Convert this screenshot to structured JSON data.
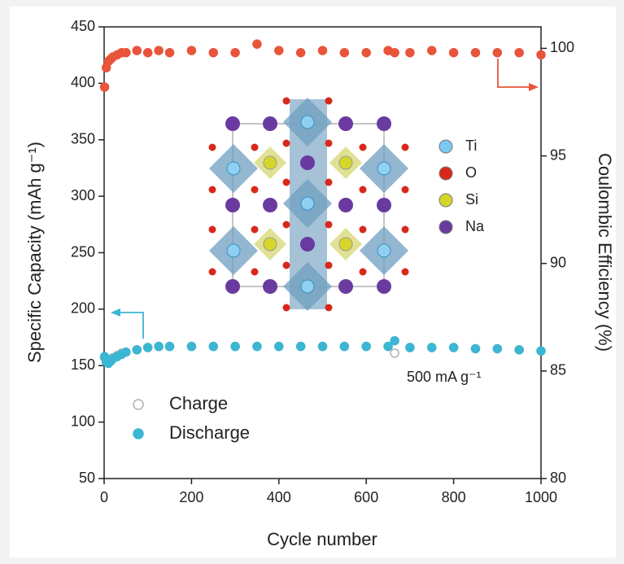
{
  "chart_data": {
    "type": "scatter",
    "x_label": "Cycle number",
    "y_label": "Specific Capacity (mAh g⁻¹)",
    "y2_label": "Coulombic Efficiency (%)",
    "annotation": "500 mA g⁻¹",
    "x": [
      1,
      5,
      10,
      15,
      20,
      30,
      40,
      50,
      75,
      100,
      125,
      150,
      200,
      250,
      300,
      350,
      400,
      450,
      500,
      550,
      600,
      650,
      665,
      700,
      750,
      800,
      850,
      900,
      950,
      1000
    ],
    "series": [
      {
        "name": "Charge",
        "color": "#b0b0b0",
        "filled": false,
        "values": [
          157,
          154,
          153,
          155,
          157,
          159,
          161,
          162,
          164,
          166,
          167,
          167,
          167,
          167,
          167,
          167,
          167,
          167,
          167,
          167,
          167,
          167,
          161,
          166,
          166,
          166,
          165,
          165,
          164,
          163
        ]
      },
      {
        "name": "Discharge",
        "color": "#3bb6d3",
        "filled": true,
        "values": [
          158,
          153,
          152,
          154,
          156,
          158,
          160,
          162,
          164,
          166,
          167,
          167,
          167,
          167,
          167,
          167,
          167,
          167,
          167,
          167,
          167,
          167,
          172,
          166,
          166,
          166,
          165,
          165,
          164,
          163
        ]
      },
      {
        "color": "#e8553a",
        "filled": true,
        "axis": "y2",
        "values": [
          98.2,
          99.1,
          99.4,
          99.5,
          99.6,
          99.7,
          99.8,
          99.8,
          99.9,
          99.8,
          99.9,
          99.8,
          99.9,
          99.8,
          99.8,
          100.2,
          99.9,
          99.8,
          99.9,
          99.8,
          99.8,
          99.9,
          99.8,
          99.8,
          99.9,
          99.8,
          99.8,
          99.8,
          99.8,
          99.7
        ]
      }
    ],
    "xlim": [
      0,
      1000
    ],
    "xticks": [
      0,
      200,
      400,
      600,
      800,
      1000
    ],
    "ylim": [
      50,
      450
    ],
    "yticks": [
      50,
      100,
      150,
      200,
      250,
      300,
      350,
      400,
      450
    ],
    "y2lim": [
      80,
      101
    ],
    "y2ticks": [
      80,
      85,
      90,
      95,
      100
    ],
    "inset_legend": [
      {
        "label": "Ti",
        "color": "#7cc8ef"
      },
      {
        "label": "O",
        "color": "#d8281c"
      },
      {
        "label": "Si",
        "color": "#d6d62a"
      },
      {
        "label": "Na",
        "color": "#6a3aa0"
      }
    ]
  }
}
